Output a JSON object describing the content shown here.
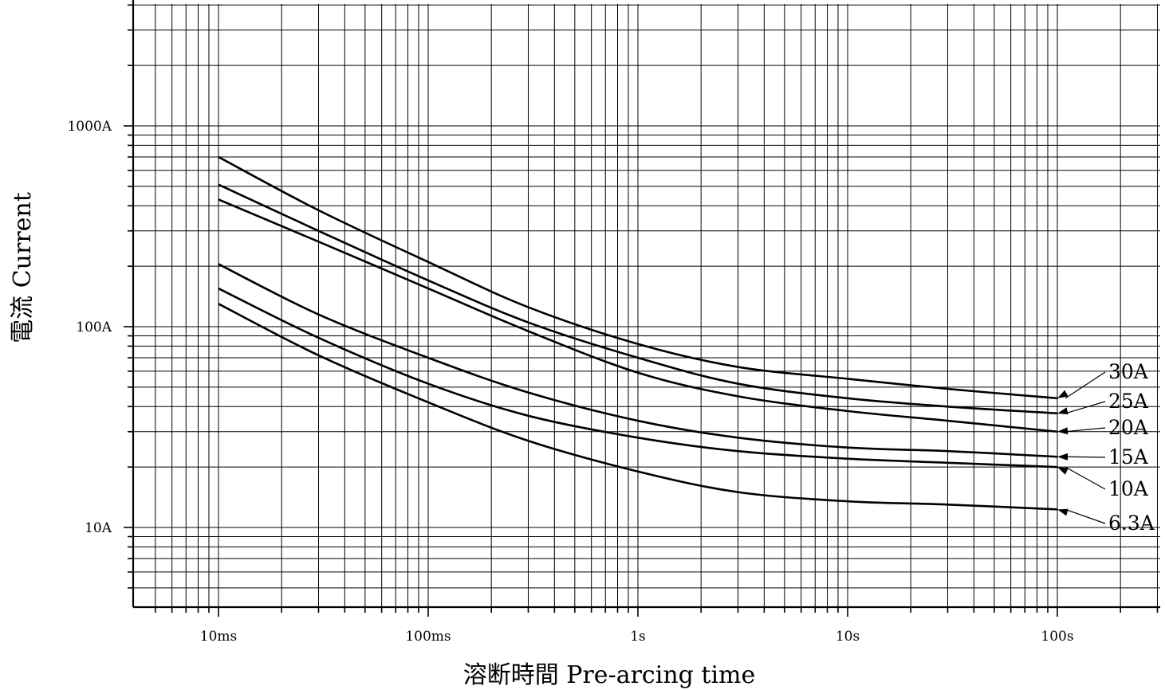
{
  "chart_data": {
    "type": "line",
    "title": "",
    "xlabel": "溶断時間 Pre-arcing time",
    "ylabel": "電流 Current",
    "xscale": "log",
    "yscale": "log",
    "xlim": [
      "5ms",
      "300s"
    ],
    "ylim": [
      "5A",
      "5000A"
    ],
    "grid": true,
    "x_ticks": [
      "10ms",
      "100ms",
      "1s",
      "10s",
      "100s"
    ],
    "y_ticks": [
      "10A",
      "100A",
      "1000A"
    ],
    "legend_placement": "right (labels with leader arrows)",
    "series": [
      {
        "name": "30A",
        "points": [
          [
            "10ms",
            700
          ],
          [
            "30ms",
            380
          ],
          [
            "100ms",
            210
          ],
          [
            "300ms",
            125
          ],
          [
            "1s",
            82
          ],
          [
            "3s",
            63
          ],
          [
            "10s",
            55
          ],
          [
            "30s",
            49
          ],
          [
            "100s",
            44
          ]
        ]
      },
      {
        "name": "25A",
        "points": [
          [
            "10ms",
            510
          ],
          [
            "30ms",
            300
          ],
          [
            "100ms",
            170
          ],
          [
            "300ms",
            105
          ],
          [
            "1s",
            70
          ],
          [
            "3s",
            52
          ],
          [
            "10s",
            44
          ],
          [
            "30s",
            40
          ],
          [
            "100s",
            37
          ]
        ]
      },
      {
        "name": "20A",
        "points": [
          [
            "10ms",
            430
          ],
          [
            "30ms",
            265
          ],
          [
            "100ms",
            155
          ],
          [
            "300ms",
            95
          ],
          [
            "1s",
            59
          ],
          [
            "3s",
            45
          ],
          [
            "10s",
            38
          ],
          [
            "30s",
            34
          ],
          [
            "100s",
            30
          ]
        ]
      },
      {
        "name": "15A",
        "points": [
          [
            "10ms",
            205
          ],
          [
            "30ms",
            115
          ],
          [
            "100ms",
            70
          ],
          [
            "300ms",
            47
          ],
          [
            "1s",
            34
          ],
          [
            "3s",
            28
          ],
          [
            "10s",
            25
          ],
          [
            "30s",
            24
          ],
          [
            "100s",
            22.5
          ]
        ]
      },
      {
        "name": "10A",
        "points": [
          [
            "10ms",
            155
          ],
          [
            "30ms",
            88
          ],
          [
            "100ms",
            52
          ],
          [
            "300ms",
            36
          ],
          [
            "1s",
            28
          ],
          [
            "3s",
            24
          ],
          [
            "10s",
            22
          ],
          [
            "30s",
            21
          ],
          [
            "100s",
            20
          ]
        ]
      },
      {
        "name": "6.3A",
        "points": [
          [
            "10ms",
            130
          ],
          [
            "30ms",
            72
          ],
          [
            "100ms",
            42
          ],
          [
            "300ms",
            27
          ],
          [
            "1s",
            19
          ],
          [
            "3s",
            15
          ],
          [
            "10s",
            13.5
          ],
          [
            "30s",
            13
          ],
          [
            "100s",
            12.3
          ]
        ]
      }
    ]
  }
}
